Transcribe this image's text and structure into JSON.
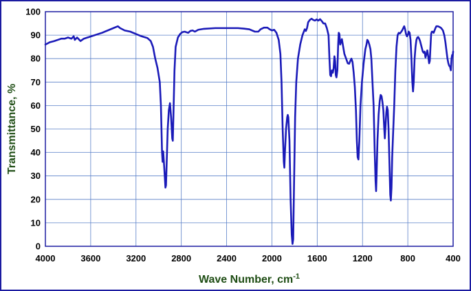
{
  "chart_data": {
    "type": "line",
    "xlabel": "Wave Number, cm",
    "xlabel_superscript": "-1",
    "ylabel": "Transmittance, %",
    "xlim": [
      4000,
      400
    ],
    "ylim": [
      0,
      100
    ],
    "x_reversed": true,
    "x_ticks": [
      4000,
      3600,
      3200,
      2800,
      2400,
      2000,
      1600,
      1200,
      800,
      400
    ],
    "y_ticks": [
      0,
      10,
      20,
      30,
      40,
      50,
      60,
      70,
      80,
      90,
      100
    ],
    "grid": true,
    "colors": {
      "line": "#1a1ab8",
      "grid": "#5a80c8",
      "frame": "#1a1aa0",
      "axis_title": "#1e4d14"
    },
    "series": [
      {
        "points": [
          [
            4000,
            86.0
          ],
          [
            3960,
            87.0
          ],
          [
            3920,
            87.5
          ],
          [
            3890,
            88.0
          ],
          [
            3860,
            88.5
          ],
          [
            3830,
            88.5
          ],
          [
            3800,
            89.0
          ],
          [
            3770,
            88.5
          ],
          [
            3750,
            89.5
          ],
          [
            3740,
            88.0
          ],
          [
            3720,
            89.0
          ],
          [
            3700,
            88.0
          ],
          [
            3690,
            87.5
          ],
          [
            3660,
            88.5
          ],
          [
            3500,
            91.0
          ],
          [
            3400,
            93.0
          ],
          [
            3360,
            93.8
          ],
          [
            3340,
            93.0
          ],
          [
            3300,
            92.0
          ],
          [
            3250,
            91.5
          ],
          [
            3200,
            90.5
          ],
          [
            3150,
            89.5
          ],
          [
            3100,
            88.8
          ],
          [
            3070,
            87.5
          ],
          [
            3050,
            85.0
          ],
          [
            3030,
            80.0
          ],
          [
            3010,
            76.0
          ],
          [
            2990,
            70.0
          ],
          [
            2980,
            60.0
          ],
          [
            2970,
            40.0
          ],
          [
            2965,
            36.0
          ],
          [
            2960,
            40.5
          ],
          [
            2955,
            37.0
          ],
          [
            2940,
            25.0
          ],
          [
            2935,
            26.0
          ],
          [
            2920,
            50.0
          ],
          [
            2910,
            58.0
          ],
          [
            2900,
            61.0
          ],
          [
            2890,
            55.0
          ],
          [
            2880,
            46.0
          ],
          [
            2875,
            45.0
          ],
          [
            2870,
            55.0
          ],
          [
            2860,
            75.0
          ],
          [
            2850,
            85.0
          ],
          [
            2830,
            89.0
          ],
          [
            2810,
            90.5
          ],
          [
            2790,
            91.3
          ],
          [
            2770,
            91.5
          ],
          [
            2740,
            91.0
          ],
          [
            2720,
            91.8
          ],
          [
            2700,
            92.0
          ],
          [
            2680,
            91.5
          ],
          [
            2650,
            92.3
          ],
          [
            2600,
            92.7
          ],
          [
            2500,
            93.0
          ],
          [
            2400,
            93.0
          ],
          [
            2300,
            93.0
          ],
          [
            2250,
            92.8
          ],
          [
            2200,
            92.5
          ],
          [
            2150,
            91.5
          ],
          [
            2120,
            91.5
          ],
          [
            2100,
            92.5
          ],
          [
            2070,
            93.2
          ],
          [
            2040,
            93.2
          ],
          [
            2020,
            92.5
          ],
          [
            2000,
            92.0
          ],
          [
            1980,
            92.3
          ],
          [
            1960,
            91.0
          ],
          [
            1940,
            88.0
          ],
          [
            1925,
            82.0
          ],
          [
            1915,
            70.0
          ],
          [
            1905,
            50.0
          ],
          [
            1895,
            36.0
          ],
          [
            1890,
            33.5
          ],
          [
            1885,
            40.0
          ],
          [
            1875,
            50.0
          ],
          [
            1865,
            55.0
          ],
          [
            1860,
            56.0
          ],
          [
            1855,
            55.0
          ],
          [
            1845,
            45.0
          ],
          [
            1835,
            20.0
          ],
          [
            1825,
            5.0
          ],
          [
            1818,
            1.0
          ],
          [
            1812,
            3.0
          ],
          [
            1805,
            25.0
          ],
          [
            1795,
            55.0
          ],
          [
            1785,
            70.0
          ],
          [
            1770,
            80.0
          ],
          [
            1750,
            86.0
          ],
          [
            1730,
            90.0
          ],
          [
            1710,
            92.5
          ],
          [
            1700,
            91.8
          ],
          [
            1690,
            93.0
          ],
          [
            1680,
            95.5
          ],
          [
            1665,
            96.5
          ],
          [
            1650,
            97.0
          ],
          [
            1635,
            96.5
          ],
          [
            1620,
            96.2
          ],
          [
            1605,
            96.7
          ],
          [
            1590,
            96.2
          ],
          [
            1575,
            96.8
          ],
          [
            1560,
            96.0
          ],
          [
            1545,
            95.0
          ],
          [
            1530,
            95.0
          ],
          [
            1515,
            93.0
          ],
          [
            1500,
            90.0
          ],
          [
            1492,
            80.0
          ],
          [
            1485,
            73.0
          ],
          [
            1478,
            72.5
          ],
          [
            1470,
            75.0
          ],
          [
            1462,
            74.0
          ],
          [
            1455,
            76.0
          ],
          [
            1448,
            81.0
          ],
          [
            1442,
            79.0
          ],
          [
            1436,
            73.0
          ],
          [
            1430,
            72.0
          ],
          [
            1422,
            75.0
          ],
          [
            1415,
            86.0
          ],
          [
            1410,
            91.0
          ],
          [
            1404,
            90.5
          ],
          [
            1397,
            86.0
          ],
          [
            1390,
            87.0
          ],
          [
            1382,
            88.3
          ],
          [
            1374,
            86.0
          ],
          [
            1360,
            82.0
          ],
          [
            1345,
            80.0
          ],
          [
            1330,
            78.0
          ],
          [
            1318,
            77.8
          ],
          [
            1308,
            79.0
          ],
          [
            1298,
            80.0
          ],
          [
            1288,
            78.5
          ],
          [
            1278,
            74.0
          ],
          [
            1268,
            68.0
          ],
          [
            1258,
            58.0
          ],
          [
            1250,
            45.0
          ],
          [
            1243,
            38.0
          ],
          [
            1236,
            37.0
          ],
          [
            1228,
            45.0
          ],
          [
            1218,
            60.0
          ],
          [
            1205,
            70.0
          ],
          [
            1190,
            78.0
          ],
          [
            1175,
            84.0
          ],
          [
            1165,
            86.0
          ],
          [
            1158,
            88.0
          ],
          [
            1150,
            87.5
          ],
          [
            1140,
            86.0
          ],
          [
            1130,
            84.0
          ],
          [
            1122,
            80.0
          ],
          [
            1112,
            70.0
          ],
          [
            1102,
            60.0
          ],
          [
            1092,
            40.0
          ],
          [
            1085,
            28.0
          ],
          [
            1080,
            23.5
          ],
          [
            1076,
            30.0
          ],
          [
            1068,
            45.0
          ],
          [
            1058,
            56.0
          ],
          [
            1048,
            62.0
          ],
          [
            1040,
            64.5
          ],
          [
            1032,
            64.0
          ],
          [
            1024,
            61.5
          ],
          [
            1016,
            58.0
          ],
          [
            1008,
            50.0
          ],
          [
            1003,
            46.0
          ],
          [
            996,
            52.0
          ],
          [
            990,
            57.0
          ],
          [
            984,
            59.5
          ],
          [
            977,
            58.0
          ],
          [
            970,
            50.0
          ],
          [
            962,
            35.0
          ],
          [
            955,
            22.0
          ],
          [
            950,
            19.5
          ],
          [
            944,
            25.0
          ],
          [
            938,
            38.0
          ],
          [
            930,
            48.0
          ],
          [
            920,
            60.0
          ],
          [
            910,
            75.0
          ],
          [
            900,
            85.0
          ],
          [
            890,
            90.0
          ],
          [
            880,
            91.0
          ],
          [
            870,
            90.7
          ],
          [
            860,
            91.3
          ],
          [
            850,
            92.0
          ],
          [
            840,
            93.0
          ],
          [
            832,
            93.8
          ],
          [
            824,
            92.5
          ],
          [
            816,
            90.5
          ],
          [
            808,
            89.5
          ],
          [
            800,
            90.0
          ],
          [
            792,
            91.5
          ],
          [
            784,
            91.0
          ],
          [
            776,
            88.0
          ],
          [
            768,
            80.0
          ],
          [
            760,
            70.0
          ],
          [
            754,
            66.0
          ],
          [
            748,
            70.0
          ],
          [
            740,
            80.0
          ],
          [
            732,
            85.0
          ],
          [
            724,
            88.0
          ],
          [
            716,
            89.0
          ],
          [
            708,
            89.2
          ],
          [
            700,
            88.5
          ],
          [
            692,
            87.5
          ],
          [
            684,
            86.0
          ],
          [
            676,
            84.5
          ],
          [
            668,
            83.0
          ],
          [
            660,
            82.5
          ],
          [
            652,
            83.0
          ],
          [
            644,
            80.5
          ],
          [
            636,
            82.0
          ],
          [
            628,
            83.5
          ],
          [
            620,
            81.0
          ],
          [
            612,
            78.0
          ],
          [
            606,
            79.0
          ],
          [
            600,
            85.0
          ],
          [
            594,
            90.5
          ],
          [
            588,
            91.5
          ],
          [
            580,
            91.5
          ],
          [
            572,
            91.0
          ],
          [
            564,
            92.0
          ],
          [
            556,
            93.0
          ],
          [
            548,
            93.8
          ],
          [
            536,
            93.8
          ],
          [
            520,
            93.5
          ],
          [
            505,
            93.0
          ],
          [
            490,
            92.0
          ],
          [
            478,
            90.0
          ],
          [
            468,
            87.0
          ],
          [
            458,
            83.0
          ],
          [
            450,
            80.0
          ],
          [
            442,
            78.0
          ],
          [
            435,
            77.0
          ],
          [
            427,
            76.5
          ],
          [
            420,
            75.0
          ],
          [
            414,
            80.0
          ],
          [
            409,
            81.5
          ],
          [
            404,
            81.0
          ],
          [
            400,
            83.0
          ]
        ]
      }
    ]
  }
}
